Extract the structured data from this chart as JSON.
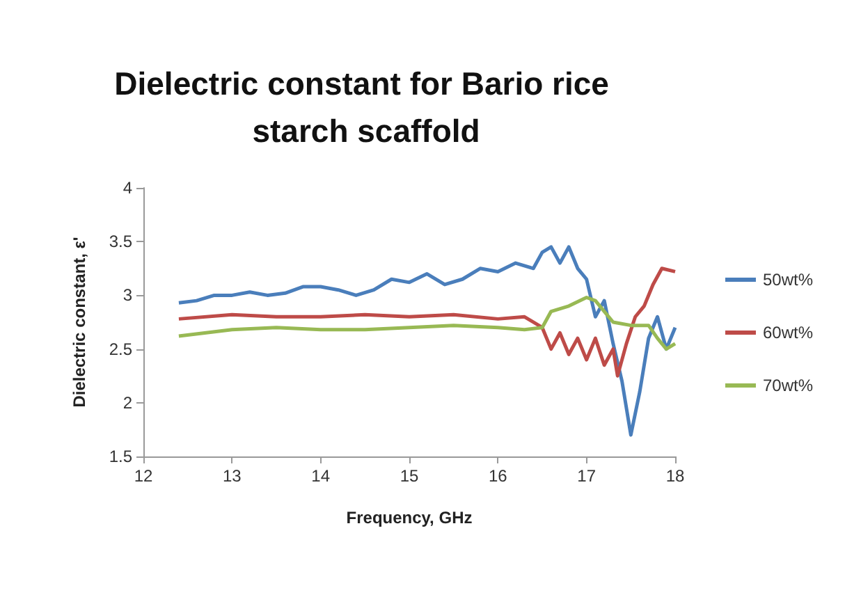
{
  "chart_data": {
    "type": "line",
    "title": "Dielectric constant for Bario rice starch scaffold",
    "xlabel": "Frequency, GHz",
    "ylabel": "Dielectric constant, ε'",
    "xlim": [
      12,
      18
    ],
    "xticks": [
      12,
      13,
      14,
      15,
      16,
      17,
      18
    ],
    "ylim": [
      1.5,
      4
    ],
    "yticks": [
      1.5,
      2,
      2.5,
      3,
      3.5,
      4
    ],
    "grid": false,
    "legend": "right",
    "marker": "none",
    "line_style": "solid",
    "series": [
      {
        "name": "50wt%",
        "color": "#4a7ebb",
        "x": [
          12.4,
          12.6,
          12.8,
          13.0,
          13.2,
          13.4,
          13.6,
          13.8,
          14.0,
          14.2,
          14.4,
          14.6,
          14.8,
          15.0,
          15.2,
          15.4,
          15.6,
          15.8,
          16.0,
          16.2,
          16.4,
          16.5,
          16.6,
          16.7,
          16.8,
          16.9,
          17.0,
          17.1,
          17.2,
          17.3,
          17.4,
          17.5,
          17.6,
          17.7,
          17.8,
          17.9,
          18.0
        ],
        "values": [
          2.93,
          2.95,
          3.0,
          3.0,
          3.03,
          3.0,
          3.02,
          3.08,
          3.08,
          3.05,
          3.0,
          3.05,
          3.15,
          3.12,
          3.2,
          3.1,
          3.15,
          3.25,
          3.22,
          3.3,
          3.25,
          3.4,
          3.45,
          3.3,
          3.45,
          3.25,
          3.15,
          2.8,
          2.95,
          2.55,
          2.2,
          1.7,
          2.1,
          2.6,
          2.8,
          2.5,
          2.7
        ]
      },
      {
        "name": "60wt%",
        "color": "#be4b48",
        "x": [
          12.4,
          13.0,
          13.5,
          14.0,
          14.5,
          15.0,
          15.5,
          16.0,
          16.3,
          16.5,
          16.6,
          16.7,
          16.8,
          16.9,
          17.0,
          17.1,
          17.2,
          17.3,
          17.35,
          17.45,
          17.55,
          17.65,
          17.75,
          17.85,
          18.0
        ],
        "values": [
          2.78,
          2.82,
          2.8,
          2.8,
          2.82,
          2.8,
          2.82,
          2.78,
          2.8,
          2.7,
          2.5,
          2.65,
          2.45,
          2.6,
          2.4,
          2.6,
          2.35,
          2.5,
          2.25,
          2.55,
          2.8,
          2.9,
          3.1,
          3.25,
          3.22
        ]
      },
      {
        "name": "70wt%",
        "color": "#98b954",
        "x": [
          12.4,
          13.0,
          13.5,
          14.0,
          14.5,
          15.0,
          15.5,
          16.0,
          16.3,
          16.5,
          16.6,
          16.8,
          17.0,
          17.1,
          17.2,
          17.3,
          17.5,
          17.7,
          17.8,
          17.9,
          18.0
        ],
        "values": [
          2.62,
          2.68,
          2.7,
          2.68,
          2.68,
          2.7,
          2.72,
          2.7,
          2.68,
          2.7,
          2.85,
          2.9,
          2.98,
          2.95,
          2.85,
          2.75,
          2.72,
          2.72,
          2.6,
          2.5,
          2.55
        ]
      }
    ]
  }
}
